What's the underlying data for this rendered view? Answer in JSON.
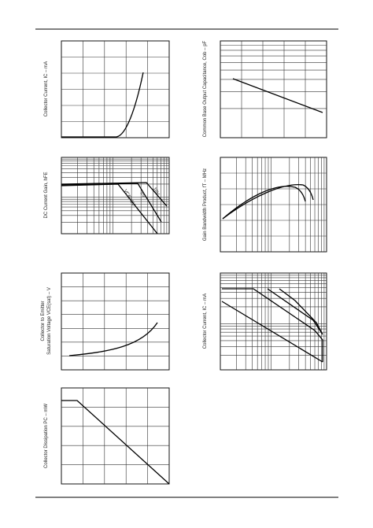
{
  "graphs": [
    {
      "y_label": "Collector Current, IC – mA"
    },
    {
      "y_label": "DC Current Gain, hFE",
      "annotations": [
        "VCE=1V",
        "5V",
        "10V"
      ]
    },
    {
      "y_label": "Collector to Emitter",
      "y_label_2": "Saturation Voltage VCE(sat) – V"
    },
    {
      "y_label": "Collector Dissipation PC – mW"
    },
    {
      "y_label": "Common Base Output Capacitance, Cob – pF"
    },
    {
      "y_label": "Gain Bandwidth Product, fT – MHz"
    },
    {
      "y_label": "Collector Current, IC – mA"
    }
  ]
}
